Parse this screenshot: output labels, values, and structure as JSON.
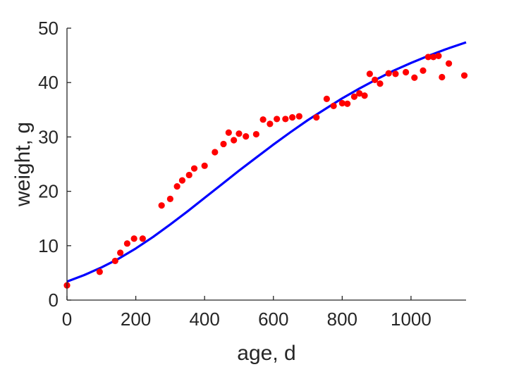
{
  "chart_data": {
    "type": "scatter",
    "title": "",
    "xlabel": "age, d",
    "ylabel": "weight, g",
    "xlim": [
      0,
      1160
    ],
    "ylim": [
      0,
      50
    ],
    "x_ticks": [
      0,
      200,
      400,
      600,
      800,
      1000
    ],
    "y_ticks": [
      0,
      10,
      20,
      30,
      40,
      50
    ],
    "grid": false,
    "legend": "none",
    "colors": {
      "points": "#ff0000",
      "fit": "#0000ff",
      "axes": "#262626"
    },
    "series": [
      {
        "type": "scatter",
        "x": [
          0,
          95,
          140,
          155,
          175,
          195,
          220,
          275,
          300,
          320,
          335,
          355,
          370,
          400,
          430,
          455,
          470,
          485,
          500,
          520,
          550,
          570,
          590,
          610,
          635,
          655,
          675,
          725,
          755,
          775,
          800,
          815,
          835,
          850,
          865,
          880,
          895,
          910,
          935,
          955,
          985,
          1010,
          1035,
          1050,
          1065,
          1080,
          1090,
          1110,
          1155
        ],
        "y": [
          2.7,
          5.2,
          7.2,
          8.7,
          10.4,
          11.3,
          11.3,
          17.4,
          18.6,
          20.9,
          22.0,
          23.0,
          24.2,
          24.7,
          27.2,
          28.7,
          30.8,
          29.4,
          30.6,
          30.1,
          30.5,
          33.2,
          32.4,
          33.3,
          33.3,
          33.6,
          33.8,
          33.6,
          37.0,
          35.7,
          36.2,
          36.1,
          37.4,
          38.0,
          37.6,
          41.6,
          40.5,
          39.8,
          41.7,
          41.6,
          41.9,
          40.9,
          42.2,
          44.7,
          44.7,
          44.9,
          41.0,
          43.5,
          41.3
        ]
      },
      {
        "type": "line",
        "x": [
          0,
          50,
          100,
          150,
          200,
          250,
          300,
          350,
          400,
          450,
          500,
          550,
          600,
          650,
          700,
          750,
          800,
          850,
          900,
          950,
          1000,
          1050,
          1100,
          1160
        ],
        "y": [
          3.4,
          4.6,
          6.0,
          7.6,
          9.5,
          11.6,
          13.9,
          16.3,
          18.8,
          21.3,
          23.8,
          26.2,
          28.6,
          30.9,
          33.1,
          35.1,
          37.1,
          38.9,
          40.6,
          42.2,
          43.6,
          44.9,
          46.1,
          47.4
        ]
      }
    ]
  }
}
